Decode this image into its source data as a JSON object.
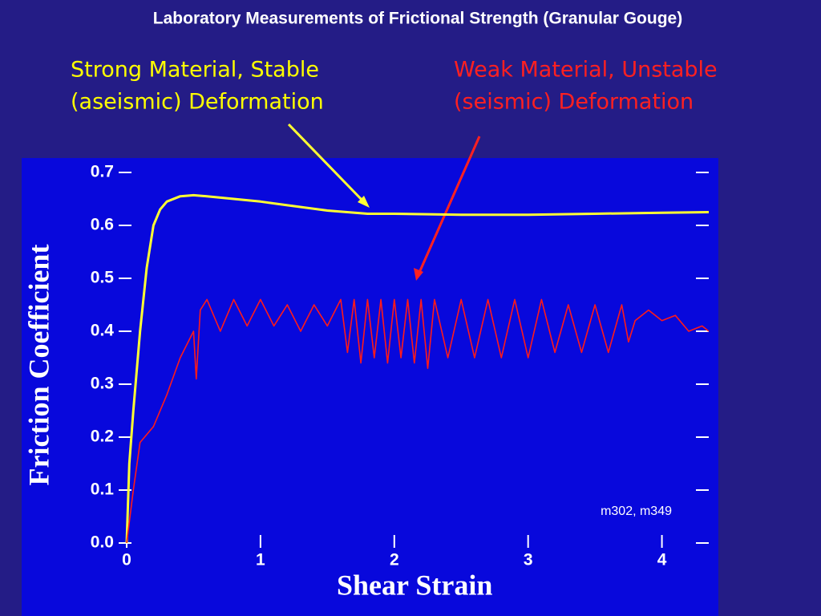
{
  "chart_data": {
    "type": "line",
    "title": "Laboratory Measurements of Frictional Strength (Granular Gouge)",
    "annotations": [
      {
        "lines": [
          "Strong Material, Stable",
          "(aseismic) Deformation"
        ],
        "color": "#ffff00"
      },
      {
        "lines": [
          "Weak Material, Unstable",
          "(seismic) Deformation"
        ],
        "color": "#ff2020"
      },
      {
        "lines": [
          "m302, m349"
        ],
        "color": "#ffffff"
      }
    ],
    "xlabel": "Shear Strain",
    "ylabel": "Friction Coefficient",
    "xlim": [
      0,
      4.35
    ],
    "ylim": [
      0,
      0.7
    ],
    "xticks": [
      0,
      1,
      2,
      3,
      4
    ],
    "yticks": [
      {
        "value": 0,
        "label": "0.0"
      },
      0.1,
      0.2,
      0.3,
      0.4,
      0.5,
      0.6,
      0.7
    ],
    "series": [
      {
        "color": "#ffff33",
        "x": [
          0,
          0.02,
          0.05,
          0.1,
          0.15,
          0.2,
          0.25,
          0.3,
          0.4,
          0.5,
          0.6,
          0.8,
          1.0,
          1.2,
          1.5,
          1.8,
          2.0,
          2.5,
          3.0,
          3.5,
          4.0,
          4.35
        ],
        "values": [
          0,
          0.15,
          0.25,
          0.4,
          0.52,
          0.6,
          0.63,
          0.645,
          0.655,
          0.657,
          0.655,
          0.65,
          0.645,
          0.638,
          0.628,
          0.622,
          0.622,
          0.62,
          0.62,
          0.622,
          0.624,
          0.625
        ]
      },
      {
        "color": "#ff1a1a",
        "x": [
          0,
          0.05,
          0.1,
          0.2,
          0.3,
          0.4,
          0.5,
          0.52,
          0.55,
          0.6,
          0.7,
          0.8,
          0.9,
          1.0,
          1.1,
          1.2,
          1.3,
          1.4,
          1.5,
          1.6,
          1.65,
          1.7,
          1.75,
          1.8,
          1.85,
          1.9,
          1.95,
          2.0,
          2.05,
          2.1,
          2.15,
          2.2,
          2.25,
          2.3,
          2.4,
          2.5,
          2.6,
          2.7,
          2.8,
          2.9,
          3.0,
          3.1,
          3.2,
          3.3,
          3.4,
          3.5,
          3.6,
          3.7,
          3.75,
          3.8,
          3.9,
          4.0,
          4.1,
          4.2,
          4.3,
          4.35
        ],
        "values": [
          0,
          0.1,
          0.19,
          0.22,
          0.28,
          0.35,
          0.4,
          0.31,
          0.44,
          0.46,
          0.4,
          0.46,
          0.41,
          0.46,
          0.41,
          0.45,
          0.4,
          0.45,
          0.41,
          0.46,
          0.36,
          0.46,
          0.34,
          0.46,
          0.35,
          0.46,
          0.34,
          0.46,
          0.35,
          0.46,
          0.34,
          0.46,
          0.33,
          0.46,
          0.35,
          0.46,
          0.35,
          0.46,
          0.35,
          0.46,
          0.35,
          0.46,
          0.36,
          0.45,
          0.36,
          0.45,
          0.36,
          0.45,
          0.38,
          0.42,
          0.44,
          0.42,
          0.43,
          0.4,
          0.41,
          0.4
        ]
      }
    ]
  }
}
